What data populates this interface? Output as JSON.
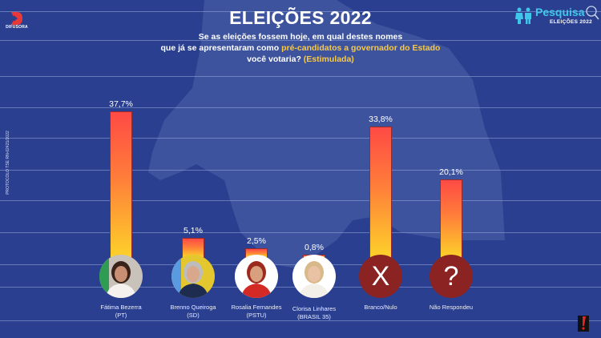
{
  "header": {
    "title": "ELEIÇÕES 2022",
    "subtitle_line1": "Se as eleições fossem hoje, em qual destes nomes",
    "subtitle_line2_pre": "que já se apresentaram como ",
    "subtitle_line2_highlight": "pré-candidatos a governador do Estado",
    "subtitle_line3_pre": "você votaria? ",
    "subtitle_line3_highlight": "(Estimulada)"
  },
  "branding": {
    "station_logo": "DIFUSORA",
    "poll_brand": "Pesquisa",
    "poll_brand_sub": "ELEIÇÕES 2022",
    "people_icon": "people-icon",
    "magnifier_icon": "magnifier-icon"
  },
  "protocol": "PROTOCOLO TSE RN-02421/2022",
  "colors": {
    "background": "#2a3f8f",
    "bar_top": "#ff4a45",
    "bar_bottom": "#fdd12a",
    "highlight": "#f7c948",
    "symbol_circle": "#8b2323",
    "brand_cyan": "#3ec7ea"
  },
  "chart_data": {
    "type": "bar",
    "title": "ELEIÇÕES 2022",
    "xlabel": "",
    "ylabel": "",
    "unit": "%",
    "ylim": [
      0,
      40
    ],
    "grid": true,
    "categories": [
      {
        "name": "Fátima Bezerra",
        "party": "(PT)",
        "avatar": "photo"
      },
      {
        "name": "Brenno Queiroga",
        "party": "(SD)",
        "avatar": "photo"
      },
      {
        "name": "Rosalia Fernandes",
        "party": "(PSTU)",
        "avatar": "photo"
      },
      {
        "name": "Clorisa Linhares",
        "party": "(BRASIL 35)",
        "avatar": "photo"
      },
      {
        "name": "Branco/Nulo",
        "party": "",
        "avatar": "X"
      },
      {
        "name": "Não Respondeu",
        "party": "",
        "avatar": "?"
      }
    ],
    "values": [
      37.7,
      5.1,
      2.5,
      0.8,
      33.8,
      20.1
    ],
    "labels": [
      "37,7%",
      "5,1%",
      "2,5%",
      "0,8%",
      "33,8%",
      "20,1%"
    ]
  }
}
